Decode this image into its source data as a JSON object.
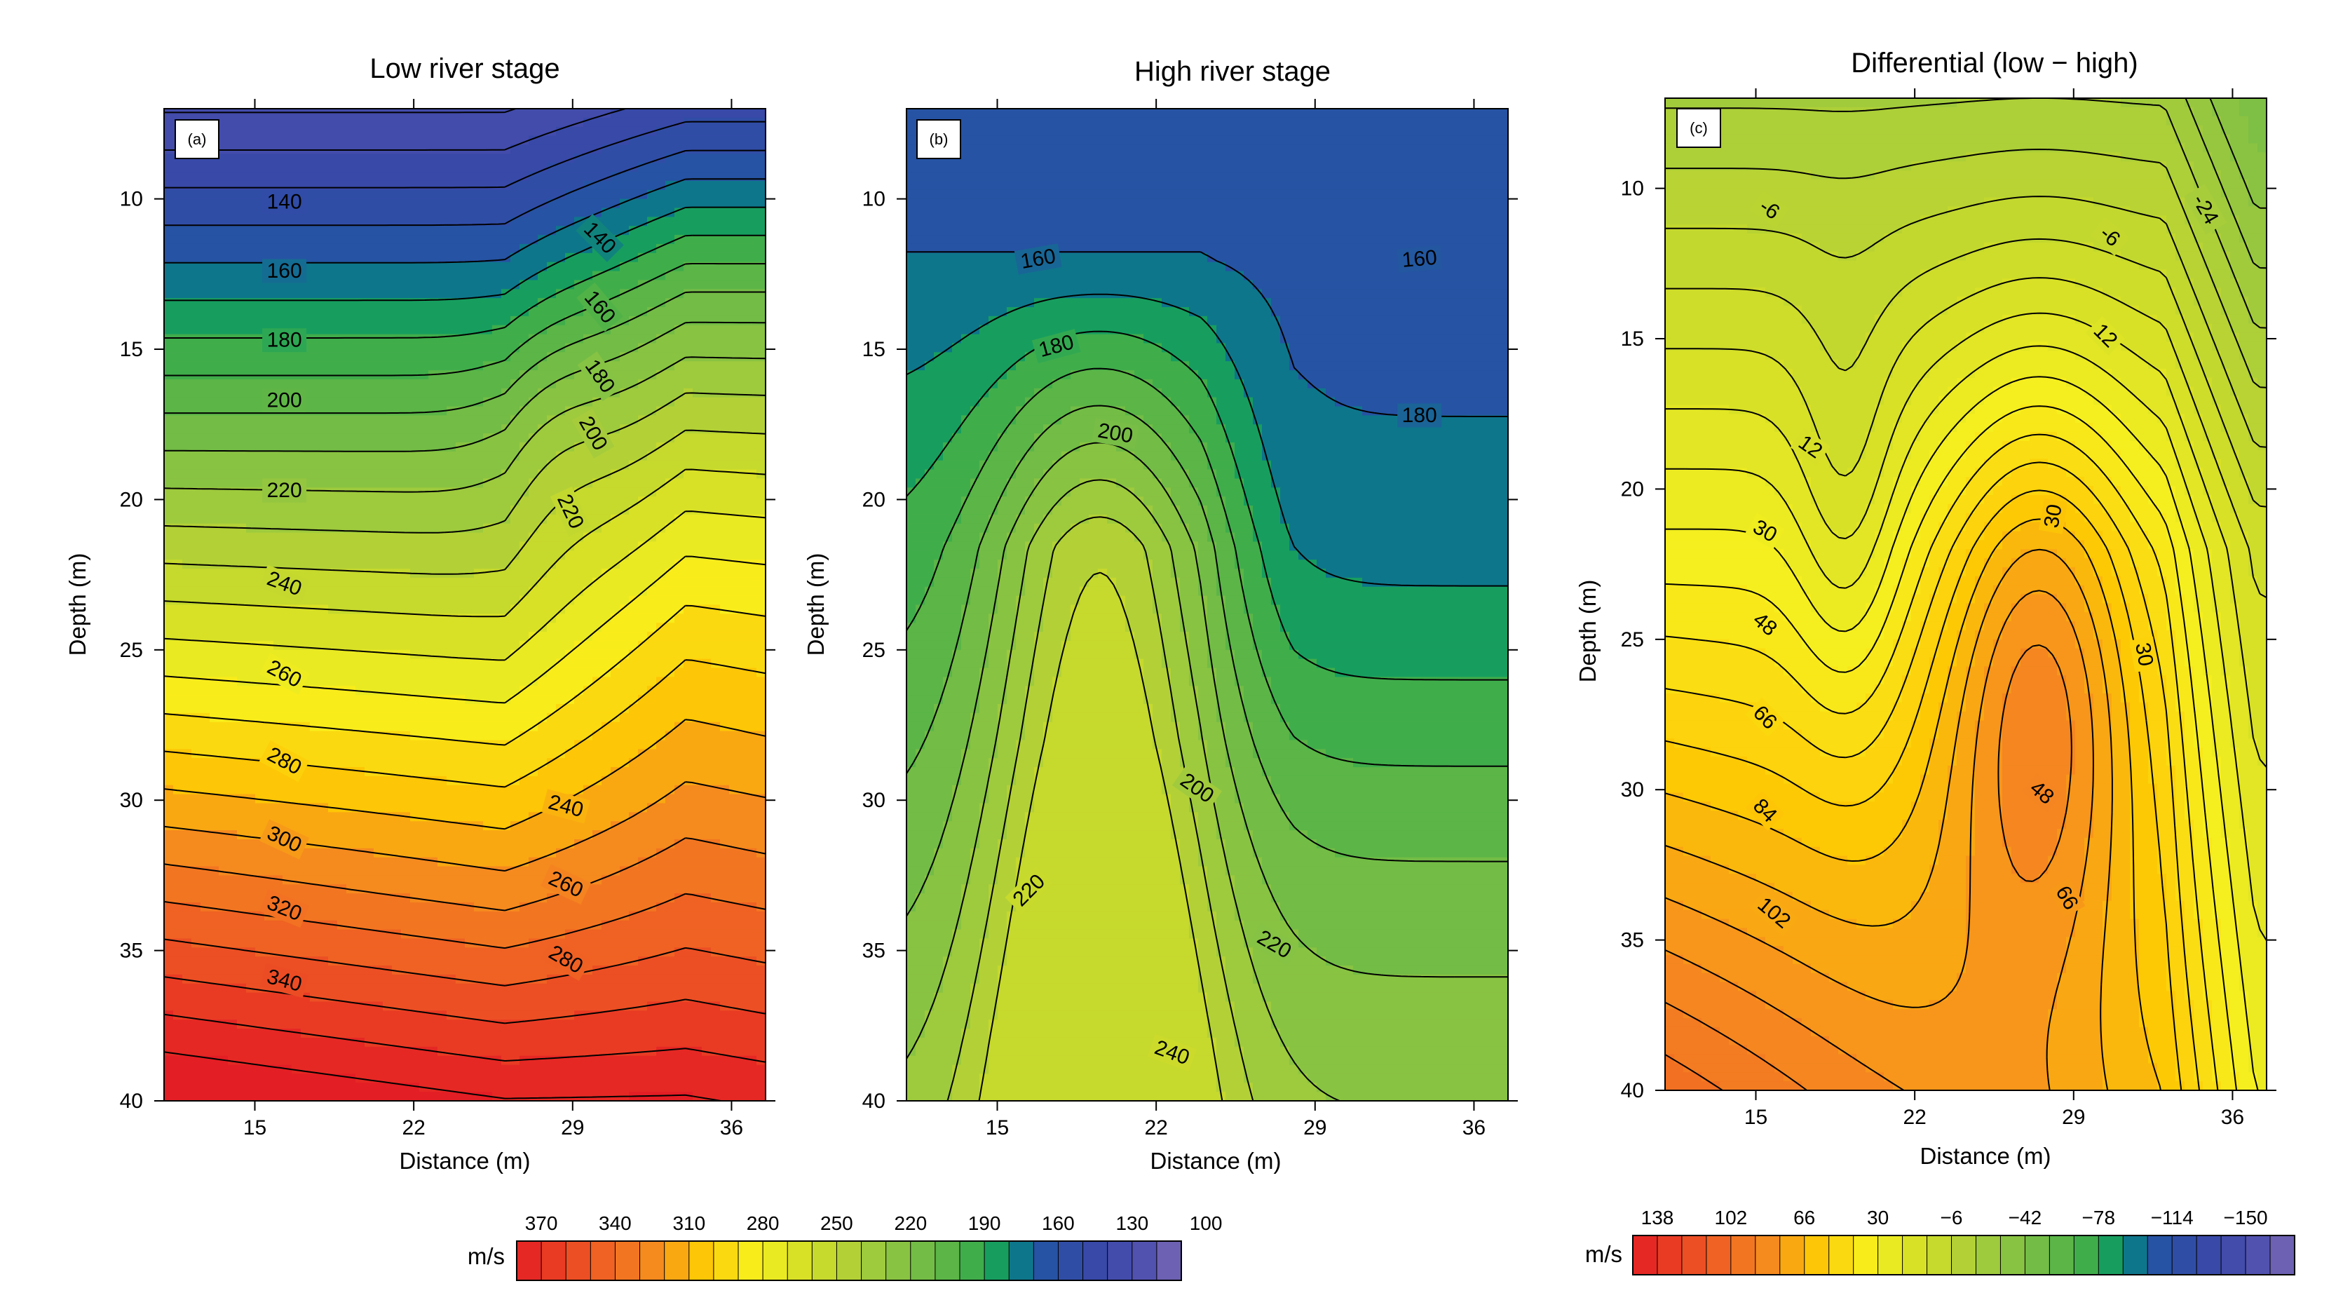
{
  "chart_data": [
    {
      "type": "heatmap",
      "panel_label": "(a)",
      "title": "Low river stage",
      "xlabel": "Distance (m)",
      "ylabel": "Depth (m)",
      "xlim": [
        11,
        37.5
      ],
      "ylim": [
        7,
        40
      ],
      "x_ticks": [
        "15",
        "22",
        "29",
        "36"
      ],
      "x_tick_values": [
        15,
        22,
        29,
        36
      ],
      "y_ticks": [
        "10",
        "15",
        "20",
        "25",
        "30",
        "35",
        "40"
      ],
      "y_tick_values": [
        10,
        15,
        20,
        25,
        30,
        35,
        40
      ],
      "contour_levels": [
        100,
        110,
        120,
        130,
        140,
        150,
        160,
        170,
        180,
        190,
        200,
        210,
        220,
        230,
        240,
        250,
        260,
        270,
        280,
        290,
        300,
        310,
        320,
        330,
        340,
        350,
        360,
        370
      ],
      "contour_labels": [
        {
          "text": "140",
          "x": 16.3,
          "y": 10.1,
          "rot": 0
        },
        {
          "text": "160",
          "x": 16.3,
          "y": 12.4,
          "rot": 0
        },
        {
          "text": "180",
          "x": 16.3,
          "y": 14.7,
          "rot": 0
        },
        {
          "text": "200",
          "x": 16.3,
          "y": 16.7,
          "rot": 0
        },
        {
          "text": "220",
          "x": 16.3,
          "y": 19.7,
          "rot": 0
        },
        {
          "text": "240",
          "x": 16.3,
          "y": 22.8,
          "rot": 20
        },
        {
          "text": "260",
          "x": 16.3,
          "y": 25.8,
          "rot": 28
        },
        {
          "text": "280",
          "x": 16.3,
          "y": 28.7,
          "rot": 28
        },
        {
          "text": "300",
          "x": 16.3,
          "y": 31.3,
          "rot": 25
        },
        {
          "text": "320",
          "x": 16.3,
          "y": 33.6,
          "rot": 22
        },
        {
          "text": "340",
          "x": 16.3,
          "y": 36.0,
          "rot": 15
        },
        {
          "text": "140",
          "x": 30.2,
          "y": 11.3,
          "rot": 45
        },
        {
          "text": "160",
          "x": 30.2,
          "y": 13.6,
          "rot": 50
        },
        {
          "text": "180",
          "x": 30.2,
          "y": 15.9,
          "rot": 55
        },
        {
          "text": "200",
          "x": 29.9,
          "y": 17.8,
          "rot": 60
        },
        {
          "text": "220",
          "x": 28.9,
          "y": 20.4,
          "rot": 65
        },
        {
          "text": "240",
          "x": 28.7,
          "y": 30.2,
          "rot": 15
        },
        {
          "text": "260",
          "x": 28.7,
          "y": 32.8,
          "rot": 25
        },
        {
          "text": "280",
          "x": 28.7,
          "y": 35.3,
          "rot": 30
        }
      ]
    },
    {
      "type": "heatmap",
      "panel_label": "(b)",
      "title": "High river stage",
      "xlabel": "Distance (m)",
      "ylabel": "Depth (m)",
      "xlim": [
        11,
        37.5
      ],
      "ylim": [
        7,
        40
      ],
      "x_ticks": [
        "15",
        "22",
        "29",
        "36"
      ],
      "x_tick_values": [
        15,
        22,
        29,
        36
      ],
      "y_ticks": [
        "10",
        "15",
        "20",
        "25",
        "30",
        "35",
        "40"
      ],
      "y_tick_values": [
        10,
        15,
        20,
        25,
        30,
        35,
        40
      ],
      "contour_levels": [
        150,
        160,
        170,
        180,
        190,
        200,
        210,
        220,
        230,
        240,
        250
      ],
      "contour_labels": [
        {
          "text": "160",
          "x": 16.8,
          "y": 12.0,
          "rot": -10
        },
        {
          "text": "180",
          "x": 17.6,
          "y": 14.9,
          "rot": -15
        },
        {
          "text": "200",
          "x": 20.2,
          "y": 17.8,
          "rot": 10
        },
        {
          "text": "160",
          "x": 33.6,
          "y": 12.0,
          "rot": -5
        },
        {
          "text": "180",
          "x": 33.6,
          "y": 17.2,
          "rot": 0
        },
        {
          "text": "200",
          "x": 23.8,
          "y": 29.6,
          "rot": 35
        },
        {
          "text": "220",
          "x": 16.4,
          "y": 33.0,
          "rot": -45
        },
        {
          "text": "220",
          "x": 27.2,
          "y": 34.8,
          "rot": 30
        },
        {
          "text": "240",
          "x": 22.7,
          "y": 38.4,
          "rot": 20
        }
      ]
    },
    {
      "type": "heatmap",
      "panel_label": "(c)",
      "title": "Differential (low − high)",
      "xlabel": "Distance (m)",
      "ylabel": "Depth (m)",
      "xlim": [
        11,
        37.5
      ],
      "ylim": [
        7,
        40
      ],
      "x_ticks": [
        "15",
        "22",
        "29",
        "36"
      ],
      "x_tick_values": [
        15,
        22,
        29,
        36
      ],
      "y_ticks": [
        "10",
        "15",
        "20",
        "25",
        "30",
        "35",
        "40"
      ],
      "y_tick_values": [
        10,
        15,
        20,
        25,
        30,
        35,
        40
      ],
      "contour_levels": [
        -24,
        -18,
        -12,
        -6,
        0,
        6,
        12,
        18,
        24,
        30,
        36,
        42,
        48,
        54,
        60,
        66,
        72,
        78,
        84,
        90,
        96,
        102,
        108,
        114,
        120
      ],
      "contour_labels": [
        {
          "text": "-6",
          "x": 15.6,
          "y": 10.7,
          "rot": 35
        },
        {
          "text": "-24",
          "x": 34.8,
          "y": 10.7,
          "rot": 60
        },
        {
          "text": "-6",
          "x": 30.6,
          "y": 11.6,
          "rot": 40
        },
        {
          "text": "12",
          "x": 30.4,
          "y": 14.9,
          "rot": 45
        },
        {
          "text": "12",
          "x": 17.4,
          "y": 18.6,
          "rot": 35
        },
        {
          "text": "30",
          "x": 28.1,
          "y": 20.9,
          "rot": -80
        },
        {
          "text": "30",
          "x": 15.4,
          "y": 21.4,
          "rot": 30
        },
        {
          "text": "48",
          "x": 15.4,
          "y": 24.5,
          "rot": 40
        },
        {
          "text": "30",
          "x": 32.1,
          "y": 25.5,
          "rot": 80
        },
        {
          "text": "66",
          "x": 15.4,
          "y": 27.6,
          "rot": 45
        },
        {
          "text": "48",
          "x": 27.6,
          "y": 30.1,
          "rot": 40
        },
        {
          "text": "84",
          "x": 15.4,
          "y": 30.7,
          "rot": 45
        },
        {
          "text": "66",
          "x": 28.7,
          "y": 33.6,
          "rot": 60
        },
        {
          "text": "102",
          "x": 15.8,
          "y": 34.1,
          "rot": 40
        }
      ]
    }
  ],
  "colorbars": [
    {
      "unit": "m/s",
      "ticks": [
        "370",
        "340",
        "310",
        "280",
        "250",
        "220",
        "190",
        "160",
        "130",
        "100"
      ],
      "range": [
        370,
        100
      ],
      "n_bins": 27
    },
    {
      "unit": "m/s",
      "ticks": [
        "138",
        "102",
        "66",
        "30",
        "−6",
        "−42",
        "−78",
        "−114",
        "−150"
      ],
      "range": [
        138,
        -150
      ],
      "n_bins": 27
    }
  ]
}
